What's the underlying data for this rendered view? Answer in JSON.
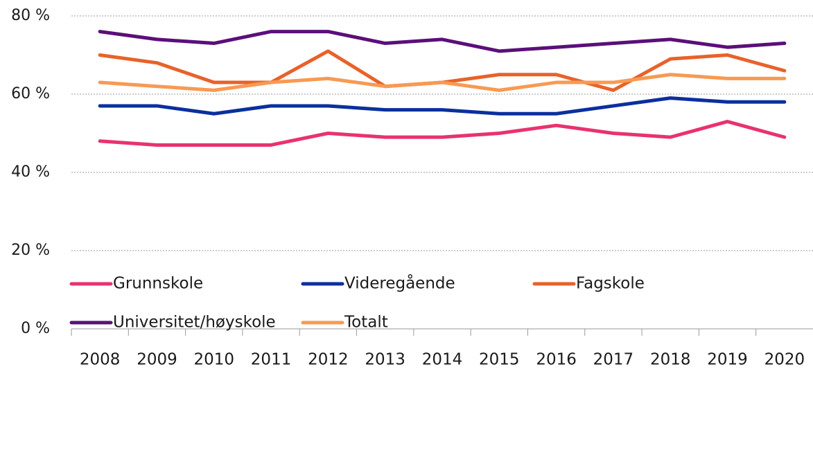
{
  "chart_data": {
    "type": "line",
    "categories": [
      "2008",
      "2009",
      "2010",
      "2011",
      "2012",
      "2013",
      "2014",
      "2015",
      "2016",
      "2017",
      "2018",
      "2019",
      "2020"
    ],
    "series": [
      {
        "name": "Grunnskole",
        "color": "#e8336e",
        "values": [
          48,
          47,
          47,
          47,
          50,
          49,
          49,
          50,
          52,
          50,
          49,
          53,
          49
        ]
      },
      {
        "name": "Videregående",
        "color": "#0a2f9e",
        "values": [
          57,
          57,
          55,
          57,
          57,
          56,
          56,
          55,
          55,
          57,
          59,
          58,
          58
        ]
      },
      {
        "name": "Fagskole",
        "color": "#e8622a",
        "values": [
          70,
          68,
          63,
          63,
          71,
          62,
          63,
          65,
          65,
          61,
          69,
          70,
          66
        ]
      },
      {
        "name": "Universitet/høyskole",
        "color": "#5b0f7a",
        "values": [
          76,
          74,
          73,
          76,
          76,
          73,
          74,
          71,
          72,
          73,
          74,
          72,
          73
        ]
      },
      {
        "name": "Totalt",
        "color": "#f79a52",
        "values": [
          63,
          62,
          61,
          63,
          64,
          62,
          63,
          61,
          63,
          63,
          65,
          64,
          64
        ]
      }
    ],
    "ylim": [
      0,
      80
    ],
    "yticks": [
      {
        "value": 0,
        "label": "0 %"
      },
      {
        "value": 20,
        "label": "20 %"
      },
      {
        "value": 40,
        "label": "40 %"
      },
      {
        "value": 60,
        "label": "60 %"
      },
      {
        "value": 80,
        "label": "80 %"
      }
    ],
    "grid": true
  }
}
